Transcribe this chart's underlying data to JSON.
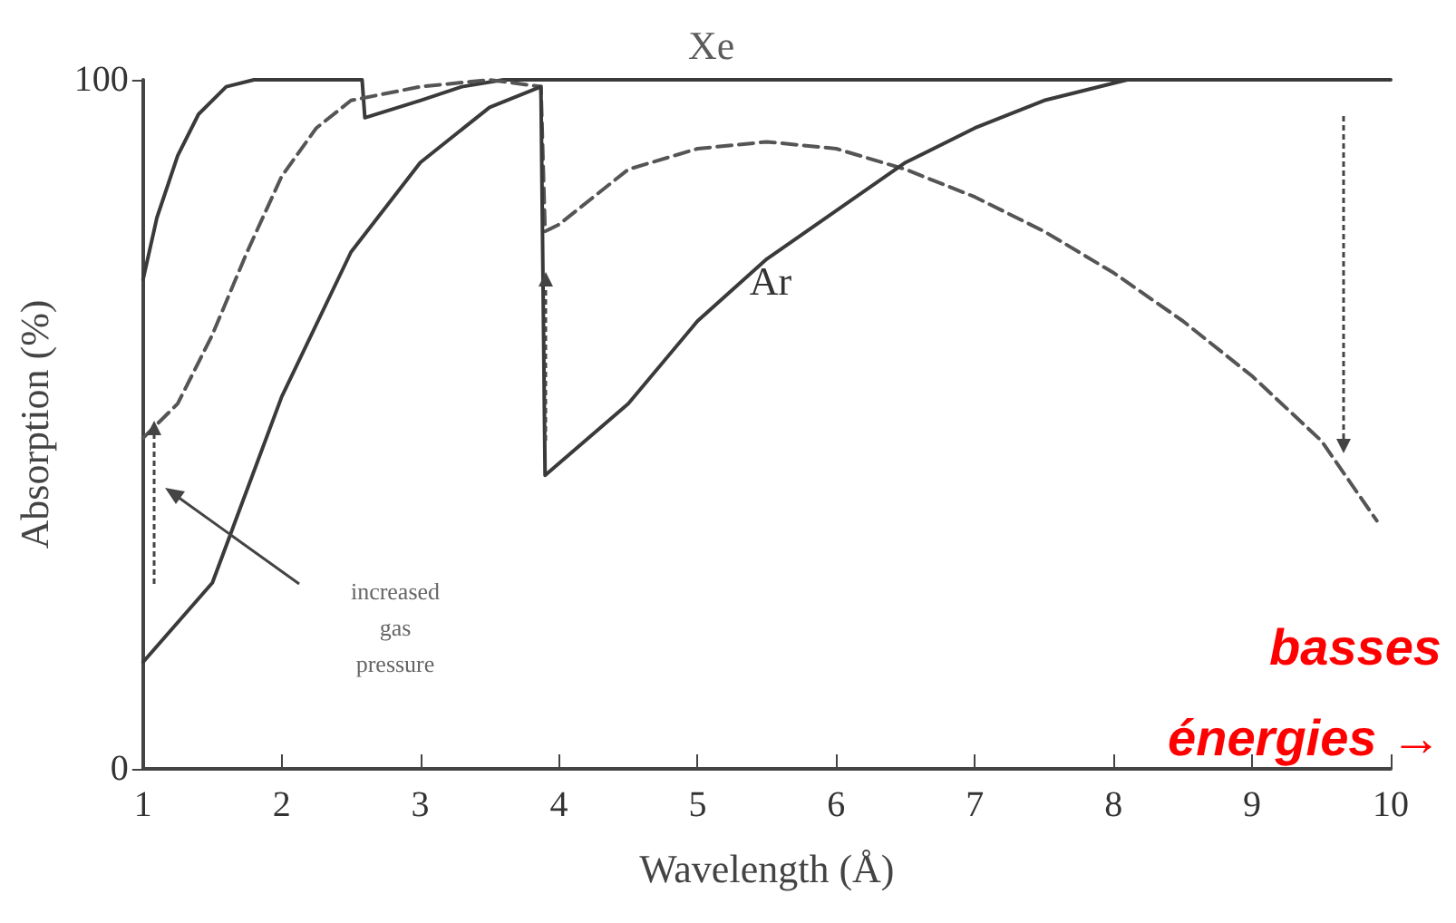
{
  "chart_data": {
    "type": "line",
    "xlabel": "Wavelength (Å)",
    "ylabel": "Absorption (%)",
    "xlim": [
      1,
      10
    ],
    "ylim": [
      0,
      100
    ],
    "xticks": [
      1,
      2,
      3,
      4,
      5,
      6,
      7,
      8,
      9,
      10
    ],
    "yticks": [
      0,
      100
    ],
    "grid": false,
    "marker": "none",
    "series": [
      {
        "color": "#3a3a3a",
        "line_style": "solid",
        "x": [
          1,
          1.1,
          1.25,
          1.4,
          1.6,
          1.8,
          2.58,
          2.6,
          3,
          3.3,
          3.6,
          10
        ],
        "values": [
          71,
          80,
          89,
          95,
          99,
          100,
          100,
          94.5,
          97,
          99,
          100,
          100
        ]
      },
      {
        "color": "#555555",
        "line_style": "dashed",
        "x": [
          1,
          1.25,
          1.5,
          1.75,
          2,
          2.25,
          2.5,
          3,
          3.5,
          3.87,
          3.9,
          4,
          4.5,
          5,
          5.5,
          6,
          6.5,
          7,
          7.5,
          8,
          8.5,
          9,
          9.5,
          9.9
        ],
        "values": [
          48,
          53,
          63,
          75,
          86,
          93,
          97,
          99,
          100,
          99,
          78,
          79,
          87,
          90,
          91,
          90,
          87,
          83,
          78,
          72,
          65,
          57,
          47.6,
          36
        ]
      },
      {
        "color": "#3a3a3a",
        "line_style": "solid",
        "x": [
          1,
          1.5,
          2,
          2.5,
          3,
          3.5,
          3.87,
          3.9,
          4.5,
          5,
          5.5,
          6,
          6.5,
          7,
          7.5,
          8,
          8.1
        ],
        "values": [
          15.5,
          27,
          54,
          75,
          88,
          96,
          99,
          42.6,
          53,
          65,
          74,
          81,
          88,
          93,
          97,
          99.5,
          100
        ]
      }
    ],
    "annotations": [
      {
        "text": "Xe",
        "x": 5.1,
        "y": 100
      },
      "Ar",
      "increased\ngas\npressure",
      "basses\nénergies →"
    ]
  }
}
